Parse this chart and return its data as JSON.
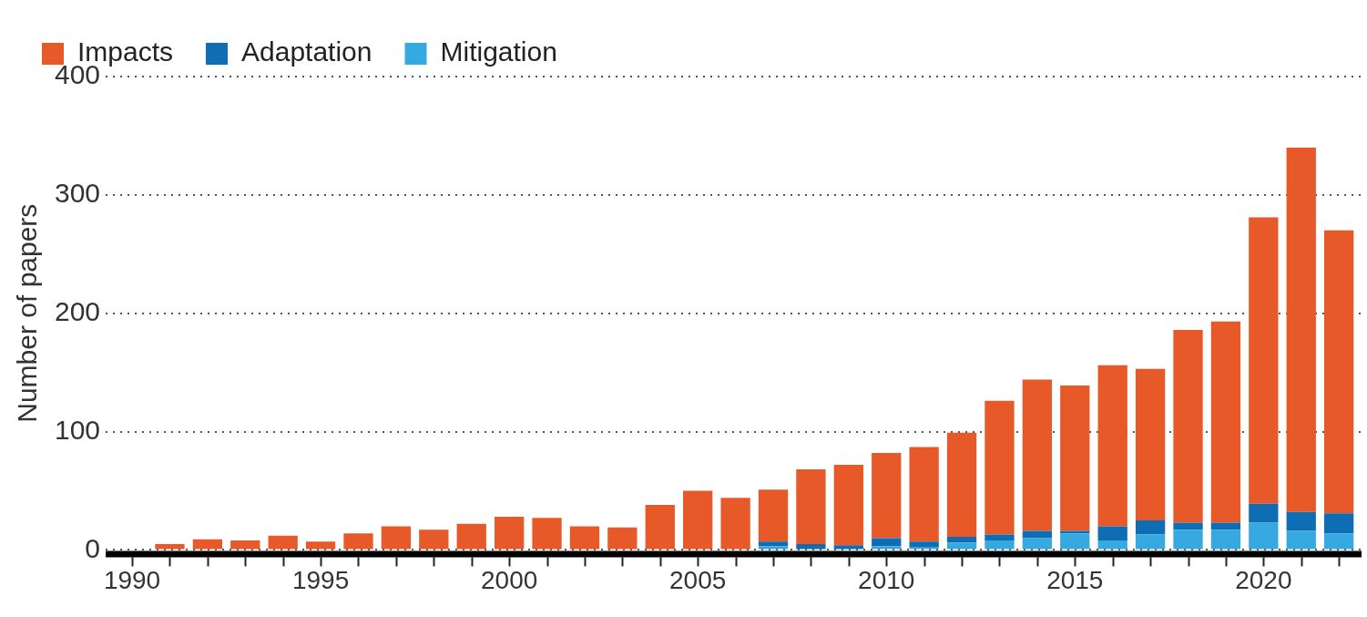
{
  "chart_data": {
    "type": "bar",
    "ylabel": "Number of papers",
    "stacked": true,
    "x": [
      1991,
      1992,
      1993,
      1994,
      1995,
      1996,
      1997,
      1998,
      1999,
      2000,
      2001,
      2002,
      2003,
      2004,
      2005,
      2006,
      2007,
      2008,
      2009,
      2010,
      2011,
      2012,
      2013,
      2014,
      2015,
      2016,
      2017,
      2018,
      2019,
      2020,
      2021,
      2022
    ],
    "series": [
      {
        "name": "Mitigation",
        "color": "#36a9e1",
        "values": [
          0,
          0,
          0,
          0,
          0,
          0,
          0,
          0,
          0,
          0,
          0,
          0,
          0,
          0,
          0,
          0,
          3,
          0,
          0,
          3,
          2,
          6,
          8,
          10,
          14,
          8,
          13,
          17,
          17,
          23,
          16,
          14
        ]
      },
      {
        "name": "Adaptation",
        "color": "#0f6db3",
        "values": [
          0,
          0,
          0,
          0,
          0,
          0,
          0,
          0,
          0,
          0,
          0,
          0,
          0,
          0,
          0,
          0,
          4,
          5,
          4,
          7,
          5,
          5,
          5,
          6,
          2,
          12,
          12,
          6,
          6,
          16,
          16,
          17
        ]
      },
      {
        "name": "Impacts",
        "color": "#e8592a",
        "values": [
          5,
          9,
          8,
          12,
          7,
          14,
          20,
          17,
          22,
          28,
          27,
          20,
          19,
          38,
          50,
          44,
          44,
          63,
          68,
          72,
          80,
          88,
          113,
          128,
          123,
          136,
          128,
          163,
          170,
          242,
          308,
          239
        ]
      }
    ],
    "xlim": [
      1989.3,
      2022.6
    ],
    "xticks": [
      1990,
      {
        "value": 1991,
        "label": null
      },
      {
        "value": 1992,
        "label": null
      },
      {
        "value": 1993,
        "label": null
      },
      {
        "value": 1994,
        "label": null
      },
      1995,
      {
        "value": 1996,
        "label": null
      },
      {
        "value": 1997,
        "label": null
      },
      {
        "value": 1998,
        "label": null
      },
      {
        "value": 1999,
        "label": null
      },
      2000,
      {
        "value": 2001,
        "label": null
      },
      {
        "value": 2002,
        "label": null
      },
      {
        "value": 2003,
        "label": null
      },
      {
        "value": 2004,
        "label": null
      },
      2005,
      {
        "value": 2006,
        "label": null
      },
      {
        "value": 2007,
        "label": null
      },
      {
        "value": 2008,
        "label": null
      },
      {
        "value": 2009,
        "label": null
      },
      2010,
      {
        "value": 2011,
        "label": null
      },
      {
        "value": 2012,
        "label": null
      },
      {
        "value": 2013,
        "label": null
      },
      {
        "value": 2014,
        "label": null
      },
      2015,
      {
        "value": 2016,
        "label": null
      },
      {
        "value": 2017,
        "label": null
      },
      {
        "value": 2018,
        "label": null
      },
      {
        "value": 2019,
        "label": null
      },
      2020,
      {
        "value": 2021,
        "label": null
      },
      {
        "value": 2022,
        "label": null
      }
    ],
    "ylim": [
      0,
      400
    ],
    "yticks": [
      0,
      100,
      200,
      300,
      400
    ],
    "grid": "y",
    "legend": "top left"
  }
}
